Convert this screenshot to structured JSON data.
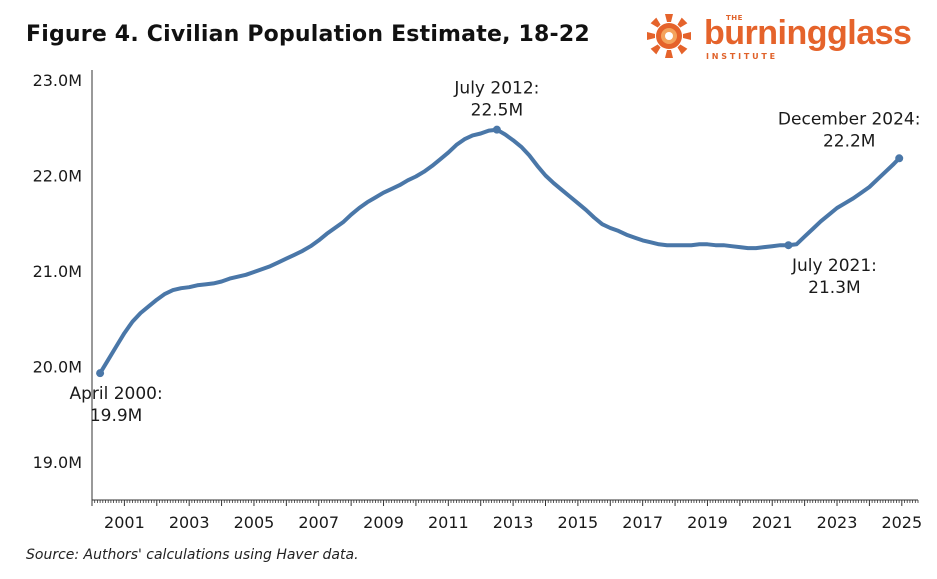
{
  "header": {
    "title": "Figure 4. Civilian Population Estimate, 18-22"
  },
  "logo": {
    "the": "THE",
    "wordmark": "burningglass",
    "institute": "INSTITUTE",
    "brand_color": "#e5632b"
  },
  "footer": {
    "source": "Source: Authors' calculations using Haver data."
  },
  "colors": {
    "line": "#4a77a8",
    "axis": "#333333"
  },
  "chart_data": {
    "type": "line",
    "title": "Figure 4. Civilian Population Estimate, 18-22",
    "xlabel": "",
    "ylabel": "",
    "xlim": [
      2000.0,
      2025.5
    ],
    "ylim": [
      18.5,
      23.0
    ],
    "grid": false,
    "y_ticks": [
      {
        "value": 19.0,
        "label": "19.0M"
      },
      {
        "value": 20.0,
        "label": "20.0M"
      },
      {
        "value": 21.0,
        "label": "21.0M"
      },
      {
        "value": 22.0,
        "label": "22.0M"
      },
      {
        "value": 23.0,
        "label": "23.0M"
      }
    ],
    "x_ticks": [
      {
        "value": 2001,
        "label": "2001"
      },
      {
        "value": 2003,
        "label": "2003"
      },
      {
        "value": 2005,
        "label": "2005"
      },
      {
        "value": 2007,
        "label": "2007"
      },
      {
        "value": 2009,
        "label": "2009"
      },
      {
        "value": 2011,
        "label": "2011"
      },
      {
        "value": 2013,
        "label": "2013"
      },
      {
        "value": 2015,
        "label": "2015"
      },
      {
        "value": 2017,
        "label": "2017"
      },
      {
        "value": 2019,
        "label": "2019"
      },
      {
        "value": 2021,
        "label": "2021"
      },
      {
        "value": 2023,
        "label": "2023"
      },
      {
        "value": 2025,
        "label": "2025"
      }
    ],
    "series": [
      {
        "name": "Civilian Population Estimate, 18-22 (millions)",
        "x": [
          2000.25,
          2000.5,
          2000.75,
          2001.0,
          2001.25,
          2001.5,
          2001.75,
          2002.0,
          2002.25,
          2002.5,
          2002.75,
          2003.0,
          2003.25,
          2003.5,
          2003.75,
          2004.0,
          2004.25,
          2004.5,
          2004.75,
          2005.0,
          2005.25,
          2005.5,
          2005.75,
          2006.0,
          2006.25,
          2006.5,
          2006.75,
          2007.0,
          2007.25,
          2007.5,
          2007.75,
          2008.0,
          2008.25,
          2008.5,
          2008.75,
          2009.0,
          2009.25,
          2009.5,
          2009.75,
          2010.0,
          2010.25,
          2010.5,
          2010.75,
          2011.0,
          2011.25,
          2011.5,
          2011.75,
          2012.0,
          2012.25,
          2012.5,
          2012.75,
          2013.0,
          2013.25,
          2013.5,
          2013.75,
          2014.0,
          2014.25,
          2014.5,
          2014.75,
          2015.0,
          2015.25,
          2015.5,
          2015.75,
          2016.0,
          2016.25,
          2016.5,
          2016.75,
          2017.0,
          2017.25,
          2017.5,
          2017.75,
          2018.0,
          2018.25,
          2018.5,
          2018.75,
          2019.0,
          2019.25,
          2019.5,
          2019.75,
          2020.0,
          2020.25,
          2020.5,
          2020.75,
          2021.0,
          2021.25,
          2021.5,
          2021.75,
          2022.0,
          2022.25,
          2022.5,
          2022.75,
          2023.0,
          2023.25,
          2023.5,
          2023.75,
          2024.0,
          2024.25,
          2024.5,
          2024.75,
          2024.92
        ],
        "values": [
          19.93,
          20.07,
          20.21,
          20.35,
          20.47,
          20.56,
          20.63,
          20.7,
          20.76,
          20.8,
          20.82,
          20.83,
          20.85,
          20.86,
          20.87,
          20.89,
          20.92,
          20.94,
          20.96,
          20.99,
          21.02,
          21.05,
          21.09,
          21.13,
          21.17,
          21.21,
          21.26,
          21.32,
          21.39,
          21.45,
          21.51,
          21.59,
          21.66,
          21.72,
          21.77,
          21.82,
          21.86,
          21.9,
          21.95,
          21.99,
          22.04,
          22.1,
          22.17,
          22.24,
          22.32,
          22.38,
          22.42,
          22.44,
          22.47,
          22.48,
          22.43,
          22.37,
          22.3,
          22.21,
          22.1,
          22.0,
          21.92,
          21.85,
          21.78,
          21.71,
          21.64,
          21.56,
          21.49,
          21.45,
          21.42,
          21.38,
          21.35,
          21.32,
          21.3,
          21.28,
          21.27,
          21.27,
          21.27,
          21.27,
          21.28,
          21.28,
          21.27,
          21.27,
          21.26,
          21.25,
          21.24,
          21.24,
          21.25,
          21.26,
          21.27,
          21.27,
          21.28,
          21.36,
          21.44,
          21.52,
          21.59,
          21.66,
          21.71,
          21.76,
          21.82,
          21.88,
          21.96,
          22.04,
          22.12,
          22.18
        ]
      }
    ],
    "annotations": [
      {
        "x": 2000.25,
        "y": 19.93,
        "label_line1": "April 2000:",
        "label_line2": "19.9M",
        "placement": "below"
      },
      {
        "x": 2012.5,
        "y": 22.48,
        "label_line1": "July 2012:",
        "label_line2": "22.5M",
        "placement": "above"
      },
      {
        "x": 2021.5,
        "y": 21.27,
        "label_line1": "July 2021:",
        "label_line2": "21.3M",
        "placement": "below"
      },
      {
        "x": 2024.92,
        "y": 22.18,
        "label_line1": "December 2024:",
        "label_line2": "22.2M",
        "placement": "above-left"
      }
    ]
  }
}
